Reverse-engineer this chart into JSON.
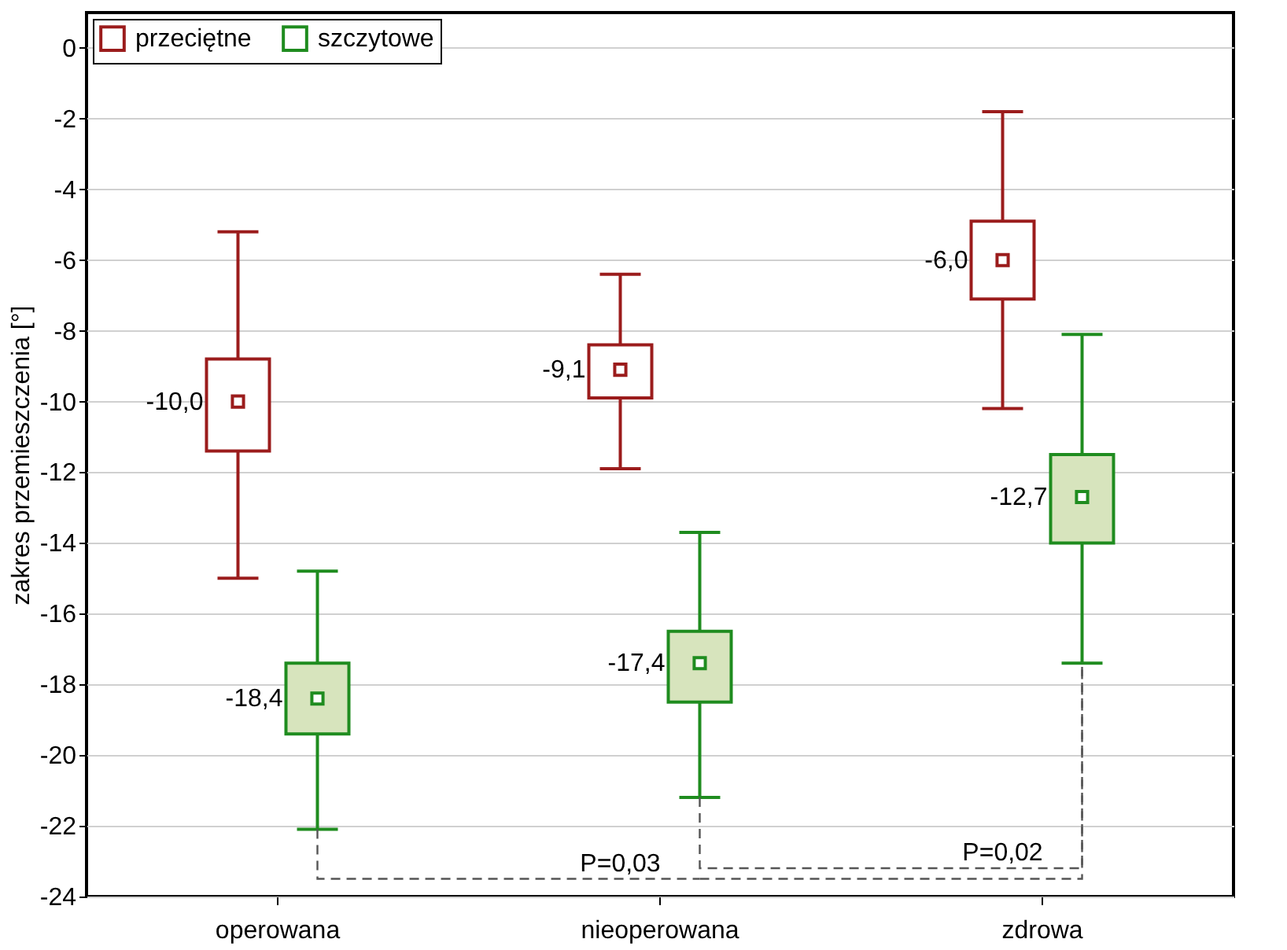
{
  "chart_data": {
    "type": "box",
    "ylabel": "zakres przemieszczenia [°]",
    "categories": [
      "operowana",
      "nieoperowana",
      "zdrowa"
    ],
    "series": [
      {
        "name": "przeciętne",
        "color": "#9b1c1c",
        "value_labels": [
          "-10,0",
          "-9,1",
          "-6,0"
        ],
        "boxes": [
          {
            "low": -15.0,
            "q1": -11.4,
            "median": -10.0,
            "q3": -8.8,
            "high": -5.2
          },
          {
            "low": -11.9,
            "q1": -9.9,
            "median": -9.1,
            "q3": -8.4,
            "high": -6.4
          },
          {
            "low": -10.2,
            "q1": -7.1,
            "median": -6.0,
            "q3": -4.9,
            "high": -1.8
          }
        ]
      },
      {
        "name": "szczytowe",
        "color": "#1f8c1f",
        "value_labels": [
          "-18,4",
          "-17,4",
          "-12,7"
        ],
        "boxes": [
          {
            "low": -22.1,
            "q1": -19.4,
            "median": -18.4,
            "q3": -17.4,
            "high": -14.8
          },
          {
            "low": -21.2,
            "q1": -18.5,
            "median": -17.4,
            "q3": -16.5,
            "high": -13.7
          },
          {
            "low": -17.4,
            "q1": -14.0,
            "median": -12.7,
            "q3": -11.5,
            "high": -8.1
          }
        ]
      }
    ],
    "annotations": [
      "P=0,03",
      "P=0,02"
    ],
    "ylim": [
      -24,
      1
    ],
    "yticks": [
      0,
      -2,
      -4,
      -6,
      -8,
      -10,
      -12,
      -14,
      -16,
      -18,
      -20,
      -22,
      -24
    ],
    "grid": "y",
    "legend": "top left",
    "marker": "square"
  }
}
